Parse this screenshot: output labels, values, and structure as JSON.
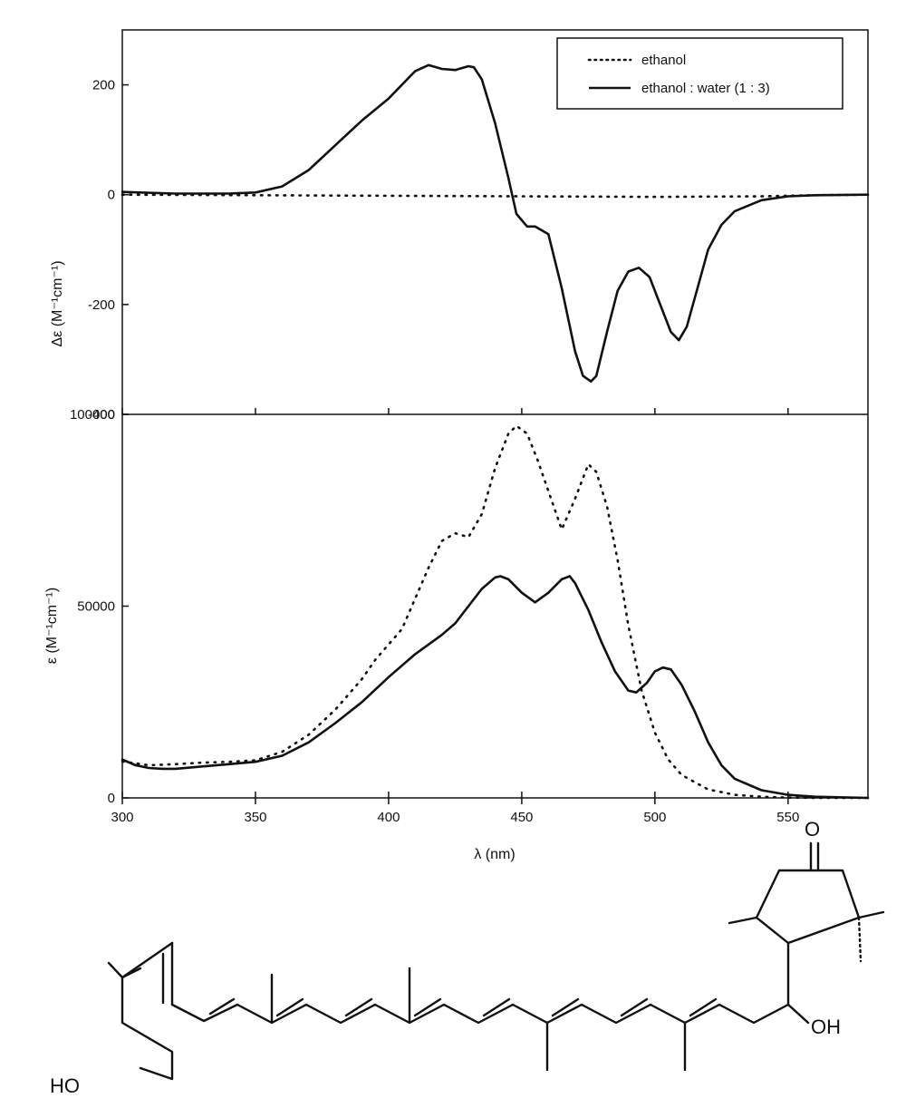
{
  "chart_data": [
    {
      "type": "line",
      "panel": "top",
      "ylabel": "Δε (M⁻¹cm⁻¹)",
      "xlim": [
        300,
        580
      ],
      "ylim": [
        -400,
        300
      ],
      "yticks": [
        -400,
        -200,
        0,
        200
      ],
      "ytick_labels": [
        "-400",
        "-200",
        "0",
        "200"
      ],
      "legend": {
        "placement": "top-right",
        "entries": [
          "ethanol",
          "ethanol : water (1 : 3)"
        ]
      },
      "series": [
        {
          "name": "ethanol",
          "style": "dotted",
          "x": [
            300,
            400,
            500,
            540,
            560,
            580
          ],
          "y": [
            0,
            -2,
            -4,
            -3,
            -1,
            0
          ]
        },
        {
          "name": "ethanol : water (1 : 3)",
          "style": "solid",
          "x": [
            300,
            320,
            340,
            350,
            360,
            370,
            380,
            390,
            400,
            410,
            415,
            420,
            425,
            430,
            432,
            435,
            440,
            445,
            448,
            452,
            455,
            460,
            465,
            470,
            473,
            476,
            478,
            482,
            486,
            490,
            494,
            498,
            502,
            506,
            509,
            512,
            516,
            520,
            525,
            530,
            540,
            550,
            560,
            580
          ],
          "y": [
            5,
            2,
            2,
            4,
            15,
            45,
            90,
            135,
            175,
            225,
            236,
            229,
            227,
            234,
            232,
            210,
            130,
            30,
            -35,
            -58,
            -58,
            -72,
            -170,
            -285,
            -330,
            -340,
            -330,
            -250,
            -175,
            -140,
            -133,
            -150,
            -200,
            -250,
            -265,
            -240,
            -170,
            -100,
            -55,
            -30,
            -10,
            -3,
            -1,
            0
          ]
        }
      ]
    },
    {
      "type": "line",
      "panel": "bottom",
      "xlabel": "λ (nm)",
      "ylabel": "ε (M⁻¹cm⁻¹)",
      "xlim": [
        300,
        580
      ],
      "ylim": [
        0,
        100000
      ],
      "xticks": [
        300,
        350,
        400,
        450,
        500,
        550
      ],
      "xtick_labels": [
        "300",
        "350",
        "400",
        "450",
        "500",
        "550"
      ],
      "yticks": [
        0,
        50000,
        100000
      ],
      "ytick_labels": [
        "0",
        "50000",
        "100000"
      ],
      "series": [
        {
          "name": "ethanol",
          "style": "dotted",
          "x": [
            300,
            310,
            320,
            330,
            340,
            350,
            360,
            370,
            380,
            390,
            395,
            400,
            405,
            410,
            415,
            420,
            425,
            430,
            435,
            440,
            445,
            448,
            452,
            456,
            460,
            465,
            470,
            475,
            478,
            482,
            486,
            490,
            495,
            500,
            505,
            510,
            520,
            530,
            540,
            550,
            560,
            580
          ],
          "y": [
            9500,
            8500,
            8800,
            9200,
            9400,
            9800,
            12000,
            16500,
            23000,
            31000,
            36000,
            40000,
            44000,
            52000,
            60000,
            67000,
            69000,
            68000,
            74000,
            86000,
            95000,
            97000,
            95000,
            88000,
            80000,
            70000,
            78000,
            87000,
            85000,
            76000,
            62000,
            45000,
            28000,
            17000,
            10000,
            6000,
            2200,
            800,
            300,
            100,
            0,
            0
          ]
        },
        {
          "name": "ethanol : water (1 : 3)",
          "style": "solid",
          "x": [
            300,
            305,
            310,
            315,
            320,
            330,
            340,
            350,
            360,
            370,
            380,
            390,
            400,
            410,
            420,
            425,
            430,
            435,
            440,
            442,
            445,
            450,
            455,
            460,
            465,
            468,
            470,
            475,
            480,
            485,
            490,
            493,
            497,
            500,
            503,
            506,
            510,
            515,
            520,
            525,
            530,
            540,
            550,
            560,
            580
          ],
          "y": [
            10000,
            8500,
            7800,
            7600,
            7600,
            8200,
            8800,
            9400,
            11000,
            14500,
            19500,
            25000,
            31500,
            37500,
            42500,
            45500,
            50000,
            54500,
            57500,
            57800,
            57000,
            53500,
            51000,
            53500,
            57000,
            57800,
            56000,
            49000,
            40500,
            33000,
            28000,
            27500,
            30000,
            33000,
            34000,
            33500,
            29500,
            22500,
            14500,
            8500,
            5000,
            2000,
            800,
            300,
            0
          ]
        }
      ]
    }
  ],
  "structure_labels": {
    "ketone_o": "O",
    "hydroxyl_right": "OH",
    "hydroxyl_left": "HO"
  }
}
